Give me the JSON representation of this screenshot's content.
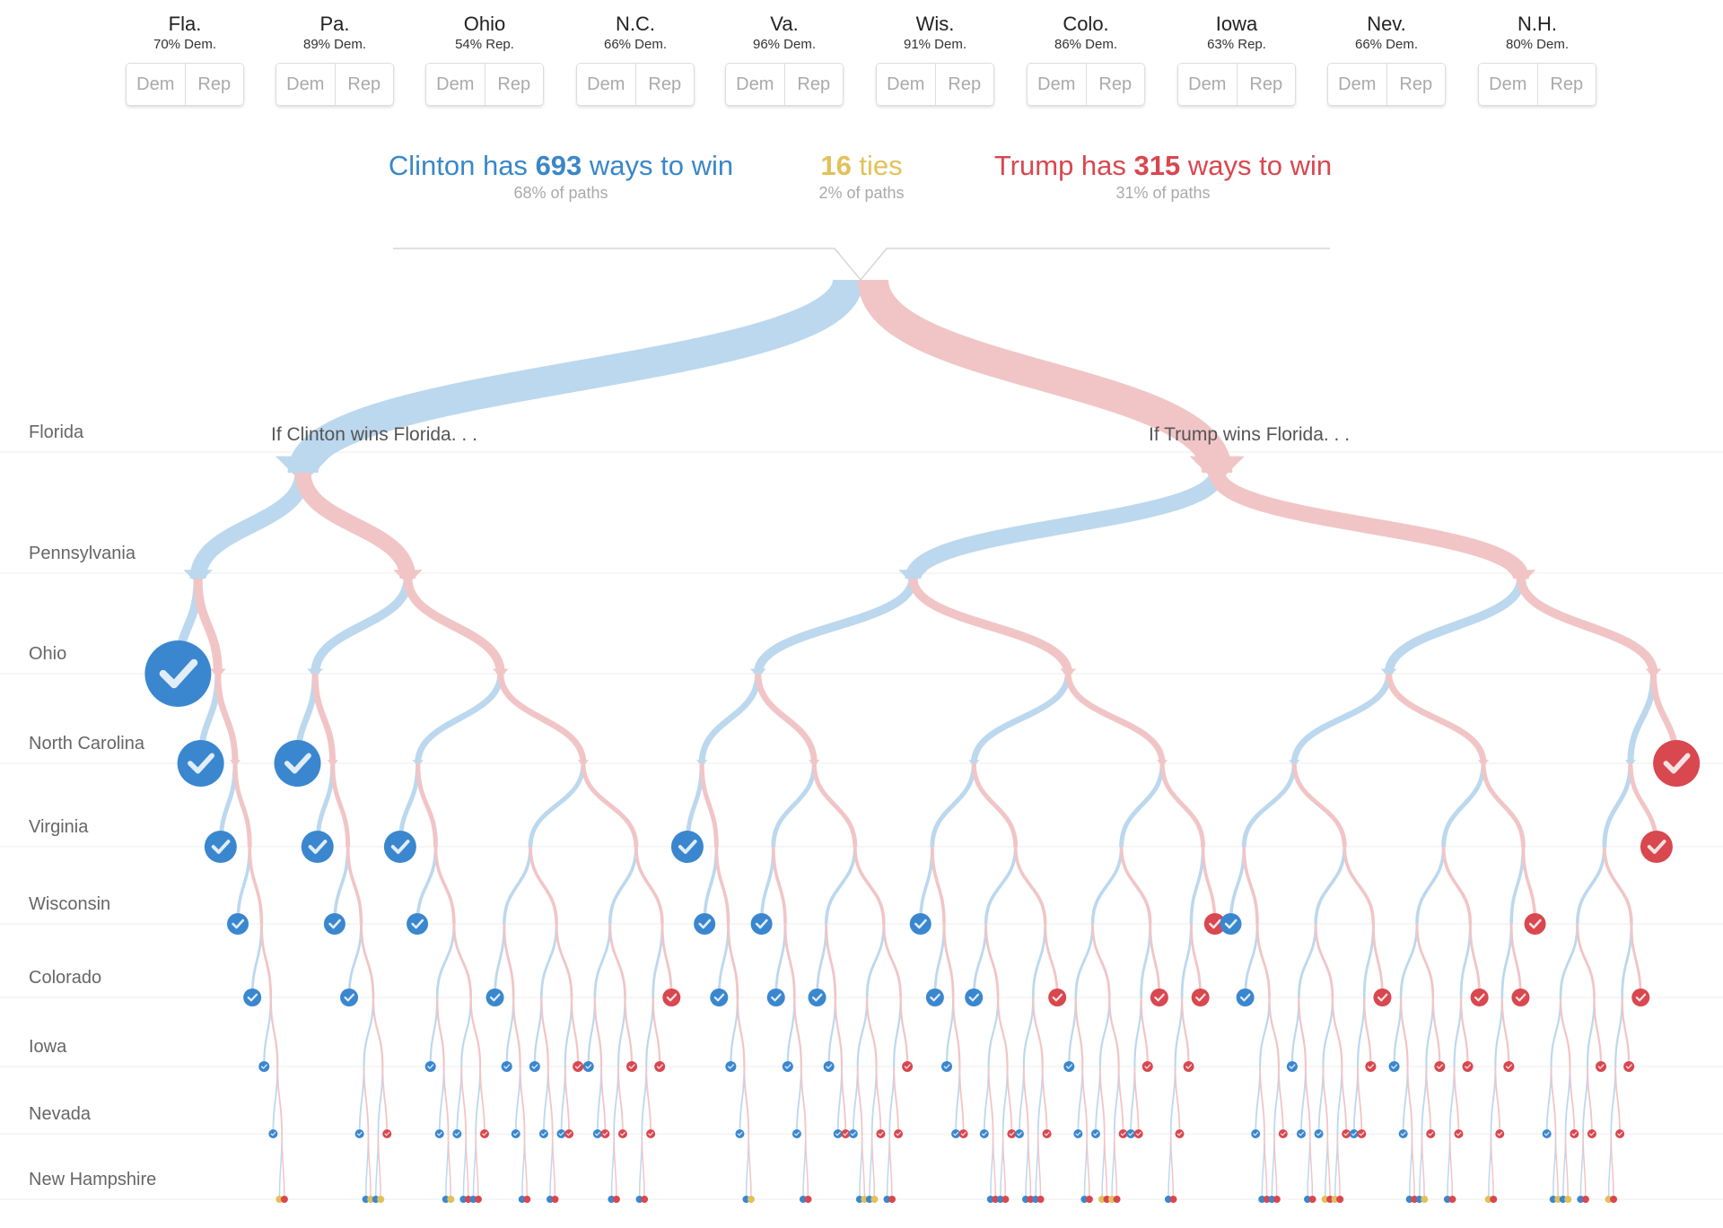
{
  "states": [
    {
      "name": "Fla.",
      "pct": "70% Dem.",
      "dem": "Dem",
      "rep": "Rep"
    },
    {
      "name": "Pa.",
      "pct": "89% Dem.",
      "dem": "Dem",
      "rep": "Rep"
    },
    {
      "name": "Ohio",
      "pct": "54% Rep.",
      "dem": "Dem",
      "rep": "Rep"
    },
    {
      "name": "N.C.",
      "pct": "66% Dem.",
      "dem": "Dem",
      "rep": "Rep"
    },
    {
      "name": "Va.",
      "pct": "96% Dem.",
      "dem": "Dem",
      "rep": "Rep"
    },
    {
      "name": "Wis.",
      "pct": "91% Dem.",
      "dem": "Dem",
      "rep": "Rep"
    },
    {
      "name": "Colo.",
      "pct": "86% Dem.",
      "dem": "Dem",
      "rep": "Rep"
    },
    {
      "name": "Iowa",
      "pct": "63% Rep.",
      "dem": "Dem",
      "rep": "Rep"
    },
    {
      "name": "Nev.",
      "pct": "66% Dem.",
      "dem": "Dem",
      "rep": "Rep"
    },
    {
      "name": "N.H.",
      "pct": "80% Dem.",
      "dem": "Dem",
      "rep": "Rep"
    }
  ],
  "headline": {
    "clinton": {
      "prefix": "Clinton has ",
      "count": "693",
      "suffix": " ways to win",
      "sub": "68% of paths"
    },
    "ties": {
      "count": "16",
      "suffix": " ties",
      "sub": "2% of paths"
    },
    "trump": {
      "prefix": "Trump has ",
      "count": "315",
      "suffix": " ways to win",
      "sub": "31% of paths"
    }
  },
  "rows": [
    "Florida",
    "Pennsylvania",
    "Ohio",
    "North Carolina",
    "Virginia",
    "Wisconsin",
    "Colorado",
    "Iowa",
    "Nevada",
    "New Hampshire"
  ],
  "florida_labels": {
    "clinton": "If Clinton wins Florida. . .",
    "trump": "If Trump wins Florida. . ."
  },
  "colors": {
    "clinton": "#3a87cf",
    "trump": "#d9474f",
    "tie": "#e2c15a",
    "clinton_branch": "#bcd8ee",
    "trump_branch": "#f1c5c6",
    "gridline": "#ececec"
  },
  "icons": {
    "decided": "checkmark-circle-icon"
  }
}
